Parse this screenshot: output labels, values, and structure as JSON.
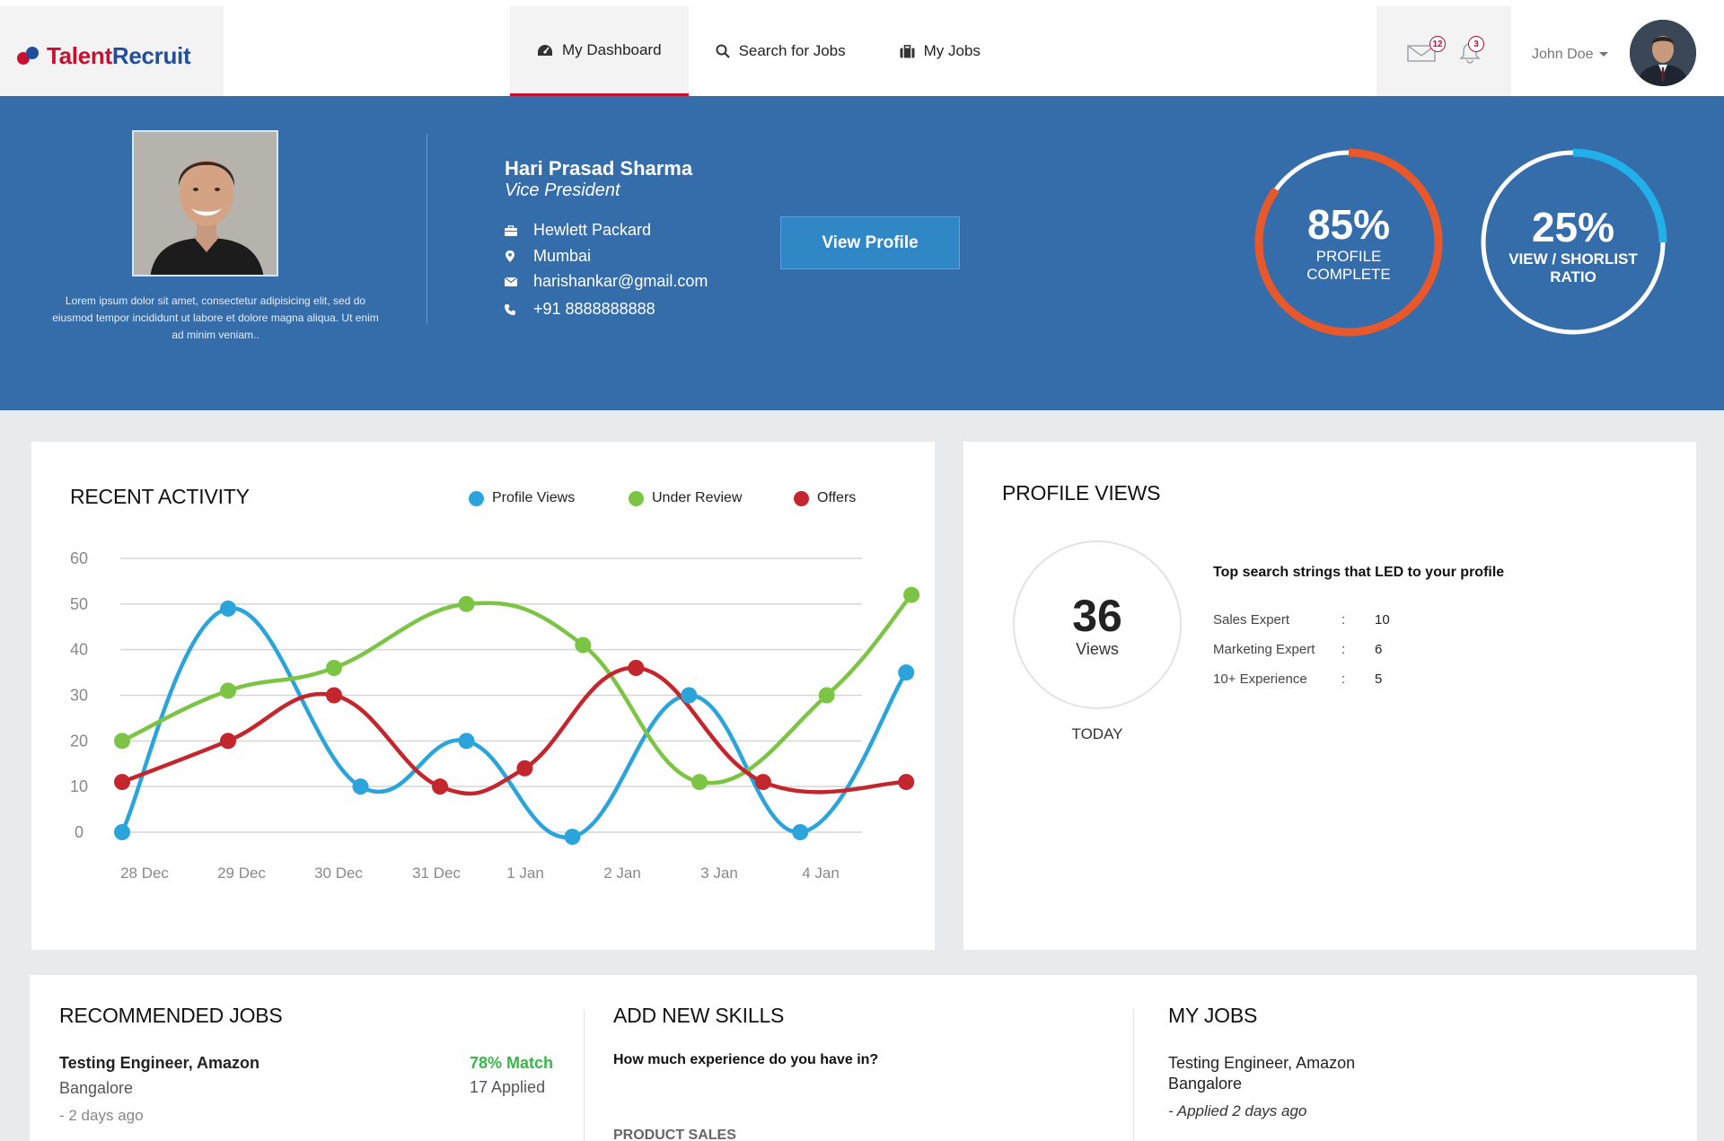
{
  "brand": {
    "name_part1": "Talent",
    "name_part2": "Recruit"
  },
  "nav": {
    "items": [
      {
        "label": "My Dashboard",
        "icon": "dashboard-icon",
        "active": true
      },
      {
        "label": "Search for Jobs",
        "icon": "search-icon",
        "active": false
      },
      {
        "label": "My Jobs",
        "icon": "briefcase-icon",
        "active": false
      }
    ]
  },
  "header": {
    "messages_count": "12",
    "notifications_count": "3",
    "user_name": "John Doe"
  },
  "profile": {
    "name": "Hari Prasad Sharma",
    "title": "Vice President",
    "bio": "Lorem ipsum dolor sit amet, consectetur adipisicing elit, sed do eiusmod tempor incididunt ut labore et dolore magna aliqua. Ut enim ad minim veniam..",
    "company": "Hewlett Packard",
    "location": "Mumbai",
    "email": "harishankar@gmail.com",
    "phone": "+91 8888888888",
    "view_profile_label": "View Profile"
  },
  "stats": {
    "profile_complete": {
      "percent_text": "85%",
      "value": 0.85,
      "label_line1": "PROFILE",
      "label_line2": "COMPLETE",
      "color": "#e8582a"
    },
    "view_shortlist": {
      "percent_text": "25%",
      "value": 0.25,
      "label_line1": "VIEW / SHORLIST",
      "label_line2": "RATIO",
      "color": "#22b0ea"
    }
  },
  "recent_activity": {
    "title": "RECENT ACTIVITY"
  },
  "chart_data": {
    "type": "line",
    "title": "",
    "categories": [
      "28 Dec",
      "29 Dec",
      "30 Dec",
      "31 Dec",
      "1 Jan",
      "2 Jan",
      "3 Jan",
      "4 Jan"
    ],
    "y_ticks": [
      0,
      10,
      20,
      30,
      40,
      50,
      60
    ],
    "ylim": [
      0,
      60
    ],
    "grid": true,
    "legend_position": "top-right",
    "series": [
      {
        "name": "Profile Views",
        "color": "#2aa4db",
        "x": [
          0,
          1,
          2.25,
          3.25,
          4.25,
          5.35,
          6.4,
          7.4
        ],
        "y": [
          0,
          49,
          10,
          20,
          -1,
          30,
          0,
          35
        ]
      },
      {
        "name": "Under Review",
        "color": "#7cc444",
        "x": [
          0,
          1,
          2,
          3.25,
          4.35,
          5.45,
          6.65,
          7.45
        ],
        "y": [
          20,
          31,
          36,
          50,
          41,
          11,
          30,
          52
        ]
      },
      {
        "name": "Offers",
        "color": "#c4262e",
        "x": [
          0,
          1,
          2,
          3,
          3.8,
          4.85,
          6.05,
          7.4
        ],
        "y": [
          11,
          20,
          30,
          10,
          14,
          36,
          11,
          11
        ]
      }
    ]
  },
  "profile_views": {
    "title": "PROFILE VIEWS",
    "count": "36",
    "count_label": "Views",
    "period": "TODAY",
    "search_heading": "Top search strings that LED to your profile",
    "search_strings": [
      {
        "term": "Sales Expert",
        "sep": ":",
        "count": "10"
      },
      {
        "term": "Marketing Expert",
        "sep": ":",
        "count": "6"
      },
      {
        "term": "10+ Experience",
        "sep": ":",
        "count": "5"
      }
    ]
  },
  "recommended_jobs": {
    "title": "RECOMMENDED JOBS",
    "items": [
      {
        "title": "Testing Engineer, Amazon",
        "location": "Bangalore",
        "posted": "- 2 days ago",
        "match": "78% Match",
        "applied": "17 Applied"
      }
    ]
  },
  "skills": {
    "title": "ADD NEW SKILLS",
    "question": "How much experience do you have in?",
    "first_skill": "PRODUCT SALES"
  },
  "my_jobs": {
    "title": "MY JOBS",
    "items": [
      {
        "title": "Testing Engineer, Amazon",
        "location": "Bangalore",
        "status": "- Applied 2 days ago"
      }
    ]
  }
}
